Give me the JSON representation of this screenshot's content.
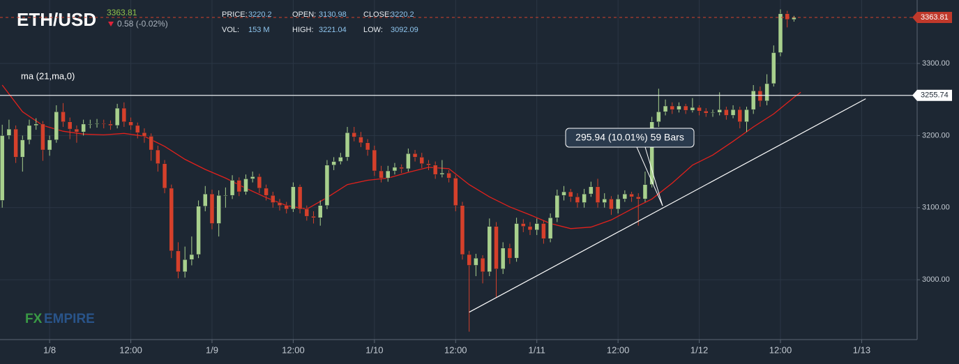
{
  "chart_data": {
    "type": "candlestick",
    "title": "ETH/USD",
    "last_price": 3363.81,
    "change": "0.58 (-0.02%)",
    "stats": [
      {
        "label": "PRICE:",
        "value": "3220.2"
      },
      {
        "label": "OPEN:",
        "value": "3130.98"
      },
      {
        "label": "CLOSE:",
        "value": "3220.2"
      },
      {
        "label": "VOL:",
        "value": "153 M"
      },
      {
        "label": "HIGH:",
        "value": "3221.04"
      },
      {
        "label": "LOW:",
        "value": "3092.09"
      }
    ],
    "indicator_label": "ma (21,ma,0)",
    "watermark": {
      "a": "FX",
      "b": "EMPIRE"
    },
    "annotation": "295.94 (10.01%) 59 Bars",
    "hline": 3255.74,
    "up_color": "#a8d08d",
    "down_color": "#d5402b",
    "grid": true,
    "xlim": [
      -7.33,
      128.2
    ],
    "ylim": [
      2917,
      3388
    ],
    "xticks": [
      {
        "value": 0,
        "label": "1/8"
      },
      {
        "value": 12,
        "label": "12:00"
      },
      {
        "value": 24,
        "label": "1/9"
      },
      {
        "value": 36,
        "label": "12:00"
      },
      {
        "value": 48,
        "label": "1/10"
      },
      {
        "value": 60,
        "label": "12:00"
      },
      {
        "value": 72,
        "label": "1/11"
      },
      {
        "value": 84,
        "label": "12:00"
      },
      {
        "value": 96,
        "label": "1/12"
      },
      {
        "value": 108,
        "label": "12:00"
      },
      {
        "value": 120,
        "label": "1/13"
      }
    ],
    "yticks": [
      {
        "value": 3000,
        "label": "3000.00"
      },
      {
        "value": 3100,
        "label": "3100.00"
      },
      {
        "value": 3200,
        "label": "3200.00"
      },
      {
        "value": 3300,
        "label": "3300.00"
      }
    ],
    "x": [
      -7,
      -6,
      -5,
      -4,
      -3,
      -2,
      -1,
      0,
      1,
      2,
      3,
      4,
      5,
      6,
      7,
      8,
      9,
      10,
      11,
      12,
      13,
      14,
      15,
      16,
      17,
      18,
      19,
      20,
      21,
      22,
      23,
      24,
      25,
      26,
      27,
      28,
      29,
      30,
      31,
      32,
      33,
      34,
      35,
      36,
      37,
      38,
      39,
      40,
      41,
      42,
      43,
      44,
      45,
      46,
      47,
      48,
      49,
      50,
      51,
      52,
      53,
      54,
      55,
      56,
      57,
      58,
      59,
      60,
      61,
      62,
      63,
      64,
      65,
      66,
      67,
      68,
      69,
      70,
      71,
      72,
      73,
      74,
      75,
      76,
      77,
      78,
      79,
      80,
      81,
      82,
      83,
      84,
      85,
      86,
      87,
      88,
      89,
      90,
      91,
      92,
      93,
      94,
      95,
      96,
      97,
      98,
      99,
      100,
      101,
      102,
      103,
      104,
      105,
      106,
      107,
      108,
      109,
      110
    ],
    "ohlc": [
      [
        3110,
        3215,
        3100,
        3200
      ],
      [
        3200,
        3222,
        3195,
        3209
      ],
      [
        3209,
        3214,
        3162,
        3170
      ],
      [
        3170,
        3200,
        3150,
        3194
      ],
      [
        3194,
        3222,
        3188,
        3214
      ],
      [
        3214,
        3224,
        3208,
        3216
      ],
      [
        3216,
        3220,
        3165,
        3180
      ],
      [
        3180,
        3200,
        3172,
        3194
      ],
      [
        3194,
        3242,
        3190,
        3233
      ],
      [
        3233,
        3245,
        3212,
        3219
      ],
      [
        3219,
        3225,
        3195,
        3209
      ],
      [
        3209,
        3214,
        3190,
        3205
      ],
      [
        3205,
        3222,
        3200,
        3216
      ],
      [
        3216,
        3222,
        3210,
        3216
      ],
      [
        3216,
        3223,
        3211,
        3217
      ],
      [
        3217,
        3222,
        3210,
        3216
      ],
      [
        3216,
        3221,
        3208,
        3214
      ],
      [
        3214,
        3244,
        3210,
        3238
      ],
      [
        3238,
        3246,
        3212,
        3219
      ],
      [
        3219,
        3225,
        3208,
        3214
      ],
      [
        3214,
        3218,
        3196,
        3204
      ],
      [
        3204,
        3210,
        3190,
        3199
      ],
      [
        3199,
        3203,
        3165,
        3180
      ],
      [
        3180,
        3186,
        3150,
        3161
      ],
      [
        3161,
        3166,
        3120,
        3127
      ],
      [
        3127,
        3132,
        3030,
        3040
      ],
      [
        3040,
        3052,
        3002,
        3011
      ],
      [
        3011,
        3046,
        3003,
        3028
      ],
      [
        3028,
        3060,
        3020,
        3035
      ],
      [
        3035,
        3110,
        3030,
        3102
      ],
      [
        3102,
        3130,
        3095,
        3119
      ],
      [
        3119,
        3125,
        3070,
        3078
      ],
      [
        3078,
        3124,
        3060,
        3117
      ],
      [
        3117,
        3128,
        3100,
        3117
      ],
      [
        3117,
        3145,
        3112,
        3138
      ],
      [
        3138,
        3142,
        3116,
        3122
      ],
      [
        3122,
        3146,
        3118,
        3140
      ],
      [
        3140,
        3150,
        3135,
        3143
      ],
      [
        3143,
        3147,
        3120,
        3127
      ],
      [
        3127,
        3132,
        3110,
        3117
      ],
      [
        3117,
        3122,
        3100,
        3107
      ],
      [
        3107,
        3112,
        3096,
        3103
      ],
      [
        3103,
        3108,
        3092,
        3098
      ],
      [
        3098,
        3135,
        3094,
        3129
      ],
      [
        3129,
        3132,
        3092,
        3098
      ],
      [
        3098,
        3103,
        3082,
        3088
      ],
      [
        3088,
        3095,
        3078,
        3086
      ],
      [
        3086,
        3110,
        3075,
        3103
      ],
      [
        3103,
        3166,
        3098,
        3159
      ],
      [
        3159,
        3170,
        3152,
        3164
      ],
      [
        3164,
        3176,
        3160,
        3170
      ],
      [
        3170,
        3212,
        3165,
        3204
      ],
      [
        3204,
        3212,
        3192,
        3198
      ],
      [
        3198,
        3205,
        3184,
        3190
      ],
      [
        3190,
        3195,
        3172,
        3180
      ],
      [
        3180,
        3186,
        3144,
        3151
      ],
      [
        3151,
        3158,
        3135,
        3141
      ],
      [
        3141,
        3158,
        3136,
        3151
      ],
      [
        3151,
        3162,
        3146,
        3156
      ],
      [
        3156,
        3160,
        3148,
        3154
      ],
      [
        3154,
        3182,
        3150,
        3175
      ],
      [
        3175,
        3180,
        3164,
        3170
      ],
      [
        3170,
        3176,
        3155,
        3161
      ],
      [
        3161,
        3166,
        3152,
        3159
      ],
      [
        3159,
        3164,
        3140,
        3146
      ],
      [
        3146,
        3166,
        3142,
        3148
      ],
      [
        3148,
        3152,
        3135,
        3141
      ],
      [
        3141,
        3145,
        3095,
        3103
      ],
      [
        3103,
        3108,
        3028,
        3035
      ],
      [
        3035,
        3040,
        2928,
        3020
      ],
      [
        3020,
        3036,
        3005,
        3030
      ],
      [
        3030,
        3034,
        2995,
        3011
      ],
      [
        3011,
        3085,
        3005,
        3074
      ],
      [
        3074,
        3080,
        2975,
        3015
      ],
      [
        3015,
        3052,
        3008,
        3044
      ],
      [
        3044,
        3050,
        3022,
        3030
      ],
      [
        3030,
        3086,
        3025,
        3078
      ],
      [
        3078,
        3084,
        3066,
        3074
      ],
      [
        3074,
        3080,
        3062,
        3069
      ],
      [
        3069,
        3085,
        3062,
        3078
      ],
      [
        3078,
        3082,
        3050,
        3057
      ],
      [
        3057,
        3092,
        3052,
        3086
      ],
      [
        3086,
        3125,
        3080,
        3117
      ],
      [
        3117,
        3130,
        3110,
        3122
      ],
      [
        3122,
        3126,
        3108,
        3115
      ],
      [
        3115,
        3120,
        3100,
        3107
      ],
      [
        3107,
        3126,
        3100,
        3119
      ],
      [
        3119,
        3136,
        3115,
        3129
      ],
      [
        3129,
        3140,
        3100,
        3107
      ],
      [
        3107,
        3120,
        3100,
        3112
      ],
      [
        3112,
        3116,
        3090,
        3098
      ],
      [
        3098,
        3118,
        3092,
        3112
      ],
      [
        3112,
        3124,
        3108,
        3119
      ],
      [
        3119,
        3122,
        3108,
        3115
      ],
      [
        3115,
        3120,
        3075,
        3112
      ],
      [
        3112,
        3150,
        3108,
        3132
      ],
      [
        3132,
        3226,
        3128,
        3219
      ],
      [
        3219,
        3265,
        3212,
        3233
      ],
      [
        3233,
        3250,
        3228,
        3241
      ],
      [
        3241,
        3246,
        3230,
        3236
      ],
      [
        3236,
        3246,
        3232,
        3241
      ],
      [
        3241,
        3244,
        3230,
        3235
      ],
      [
        3235,
        3252,
        3232,
        3239
      ],
      [
        3239,
        3242,
        3228,
        3234
      ],
      [
        3234,
        3238,
        3226,
        3231
      ],
      [
        3231,
        3236,
        3226,
        3232
      ],
      [
        3232,
        3260,
        3228,
        3236
      ],
      [
        3236,
        3240,
        3222,
        3228
      ],
      [
        3228,
        3242,
        3224,
        3236
      ],
      [
        3236,
        3240,
        3210,
        3219
      ],
      [
        3219,
        3240,
        3205,
        3236
      ],
      [
        3236,
        3270,
        3230,
        3262
      ],
      [
        3262,
        3268,
        3240,
        3248
      ],
      [
        3248,
        3285,
        3242,
        3272
      ],
      [
        3272,
        3325,
        3268,
        3315
      ],
      [
        3315,
        3375,
        3310,
        3369
      ],
      [
        3369,
        3373,
        3350,
        3361
      ],
      [
        3361,
        3366,
        3358,
        3363.81
      ]
    ],
    "ma": {
      "color": "#e3211c",
      "x": [
        -7,
        -4,
        -1,
        2,
        5,
        8,
        11,
        14,
        17,
        20,
        23,
        26,
        29,
        32,
        35,
        38,
        41,
        44,
        47,
        50,
        53,
        56,
        59,
        62,
        65,
        68,
        71,
        74,
        77,
        80,
        83,
        86,
        89,
        92,
        95,
        98,
        101,
        104,
        107,
        110,
        111
      ],
      "values": [
        3270,
        3233,
        3214,
        3206,
        3202,
        3201,
        3203,
        3199,
        3185,
        3167,
        3153,
        3141,
        3127,
        3114,
        3103,
        3098,
        3114,
        3132,
        3138,
        3141,
        3149,
        3156,
        3154,
        3132,
        3115,
        3101,
        3090,
        3078,
        3071,
        3073,
        3083,
        3098,
        3112,
        3134,
        3159,
        3173,
        3192,
        3212,
        3230,
        3253,
        3260
      ]
    },
    "trendline": {
      "x": [
        62,
        120.6
      ],
      "values": [
        2955,
        3251
      ]
    }
  }
}
